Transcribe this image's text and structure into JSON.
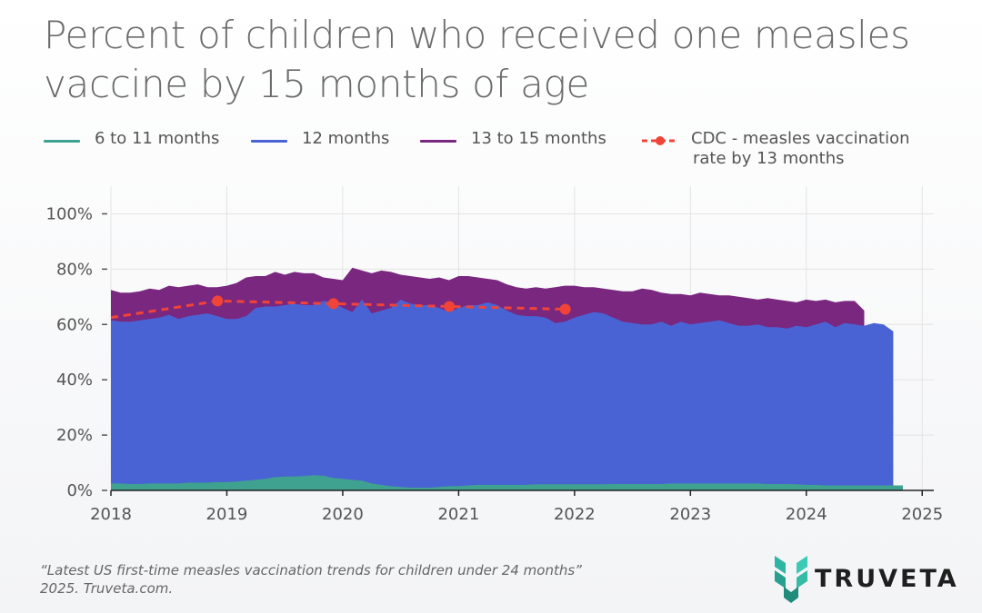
{
  "title_line1": "Percent of children who received one measles",
  "title_line2": "vaccine by 15 months of age",
  "legend": [
    {
      "label": "6 to 11 months",
      "color": "#3fa18f"
    },
    {
      "label": "12 months",
      "color": "#4a63d4"
    },
    {
      "label": "13 to 15 months",
      "color": "#7a2780"
    },
    {
      "label_line1": "CDC - measles vaccination",
      "label_line2": "rate by 13 months",
      "color": "#f04438"
    }
  ],
  "footnote": {
    "line1": "“Latest US first-time measles vaccination trends for children under 24 months”",
    "line2": "2025. Truveta.com."
  },
  "logo": {
    "text": "TRUVETA"
  },
  "chart_data": {
    "type": "area",
    "stacked": false,
    "x_start": 2018.0,
    "x_step": 0.08333,
    "xlim": [
      2018.0,
      2025.1
    ],
    "ylim": [
      0,
      110
    ],
    "yticks": [
      0,
      20,
      40,
      60,
      80,
      100
    ],
    "ytick_labels": [
      "0%",
      "20%",
      "40%",
      "60%",
      "80%",
      "100%"
    ],
    "xticks": [
      2018,
      2019,
      2020,
      2021,
      2022,
      2023,
      2024,
      2025
    ],
    "xtick_labels": [
      "2018",
      "2019",
      "2020",
      "2021",
      "2022",
      "2023",
      "2024",
      "2025"
    ],
    "grid": true,
    "series": [
      {
        "name": "13 to 15 months",
        "color": "#7a2780",
        "kind": "area",
        "values": [
          72.5,
          71.5,
          71.5,
          72,
          73,
          72.5,
          74,
          73.5,
          74,
          74.5,
          73.5,
          73.5,
          74,
          75,
          77,
          77.5,
          77.5,
          79,
          78,
          79,
          78.5,
          78.5,
          77,
          76.5,
          76,
          80.5,
          79.5,
          78.5,
          79.5,
          79,
          78,
          77.5,
          77,
          76.5,
          77,
          76,
          77.5,
          77.5,
          77,
          76.5,
          76,
          74.5,
          73.5,
          73,
          73.5,
          73,
          73.5,
          74,
          74,
          73.5,
          73.5,
          73,
          72.5,
          72,
          72,
          73,
          72.5,
          71.5,
          71,
          71,
          70.5,
          71.5,
          71,
          70.5,
          70.5,
          70,
          69.5,
          69,
          69.5,
          69,
          68.5,
          68,
          69,
          68.5,
          69,
          68,
          68.5,
          68.5,
          65
        ]
      },
      {
        "name": "12 months",
        "color": "#4a63d4",
        "kind": "area",
        "values": [
          61.5,
          61,
          61,
          61.5,
          62,
          62.5,
          63.5,
          62,
          63,
          63.5,
          64,
          63,
          62,
          62,
          63,
          66,
          66.5,
          66.5,
          67,
          67.5,
          67,
          67,
          68.5,
          68,
          66,
          64.5,
          69,
          64,
          65,
          66,
          69,
          67.5,
          67,
          67,
          66,
          64.5,
          66,
          67,
          67,
          68,
          67,
          65,
          63.5,
          63,
          63,
          62.5,
          60.5,
          61,
          62.5,
          63.5,
          64.5,
          64,
          62.5,
          61,
          60.5,
          60,
          60,
          61,
          59.5,
          61,
          60,
          60.5,
          61,
          61.5,
          60.5,
          59.5,
          59.5,
          60,
          59,
          59,
          58.5,
          59.5,
          59,
          60,
          61,
          59,
          60.5,
          60,
          59.5,
          60.5,
          60,
          57.5
        ]
      },
      {
        "name": "6 to 11 months",
        "color": "#3fa18f",
        "kind": "area",
        "values": [
          2.5,
          2.5,
          2.3,
          2.3,
          2.5,
          2.5,
          2.5,
          2.5,
          2.8,
          2.8,
          2.8,
          3,
          3,
          3.2,
          3.5,
          3.8,
          4.2,
          4.8,
          5,
          5,
          5.2,
          5.5,
          5.3,
          4.5,
          4.2,
          3.8,
          3.5,
          2.5,
          2,
          1.5,
          1.2,
          1,
          1,
          1,
          1.2,
          1.5,
          1.5,
          1.8,
          2,
          2,
          2,
          2,
          2,
          2,
          2.2,
          2.2,
          2.2,
          2.2,
          2.2,
          2.2,
          2.2,
          2.2,
          2.3,
          2.3,
          2.3,
          2.3,
          2.3,
          2.3,
          2.5,
          2.5,
          2.5,
          2.5,
          2.5,
          2.5,
          2.5,
          2.5,
          2.5,
          2.5,
          2.3,
          2.3,
          2.3,
          2.2,
          2,
          2,
          1.8,
          1.8,
          1.8,
          1.8,
          1.8,
          1.8,
          1.8,
          1.8,
          1.8
        ]
      },
      {
        "name": "CDC - measles vaccination rate by 13 months",
        "color": "#f04438",
        "kind": "dashed-line",
        "x": [
          2018.0,
          2018.92,
          2019.92,
          2020.92,
          2021.92
        ],
        "values": [
          62.5,
          68.5,
          67.5,
          66.5,
          65.5
        ],
        "markers_at": [
          2018.92,
          2019.92,
          2020.92,
          2021.92
        ]
      }
    ]
  }
}
